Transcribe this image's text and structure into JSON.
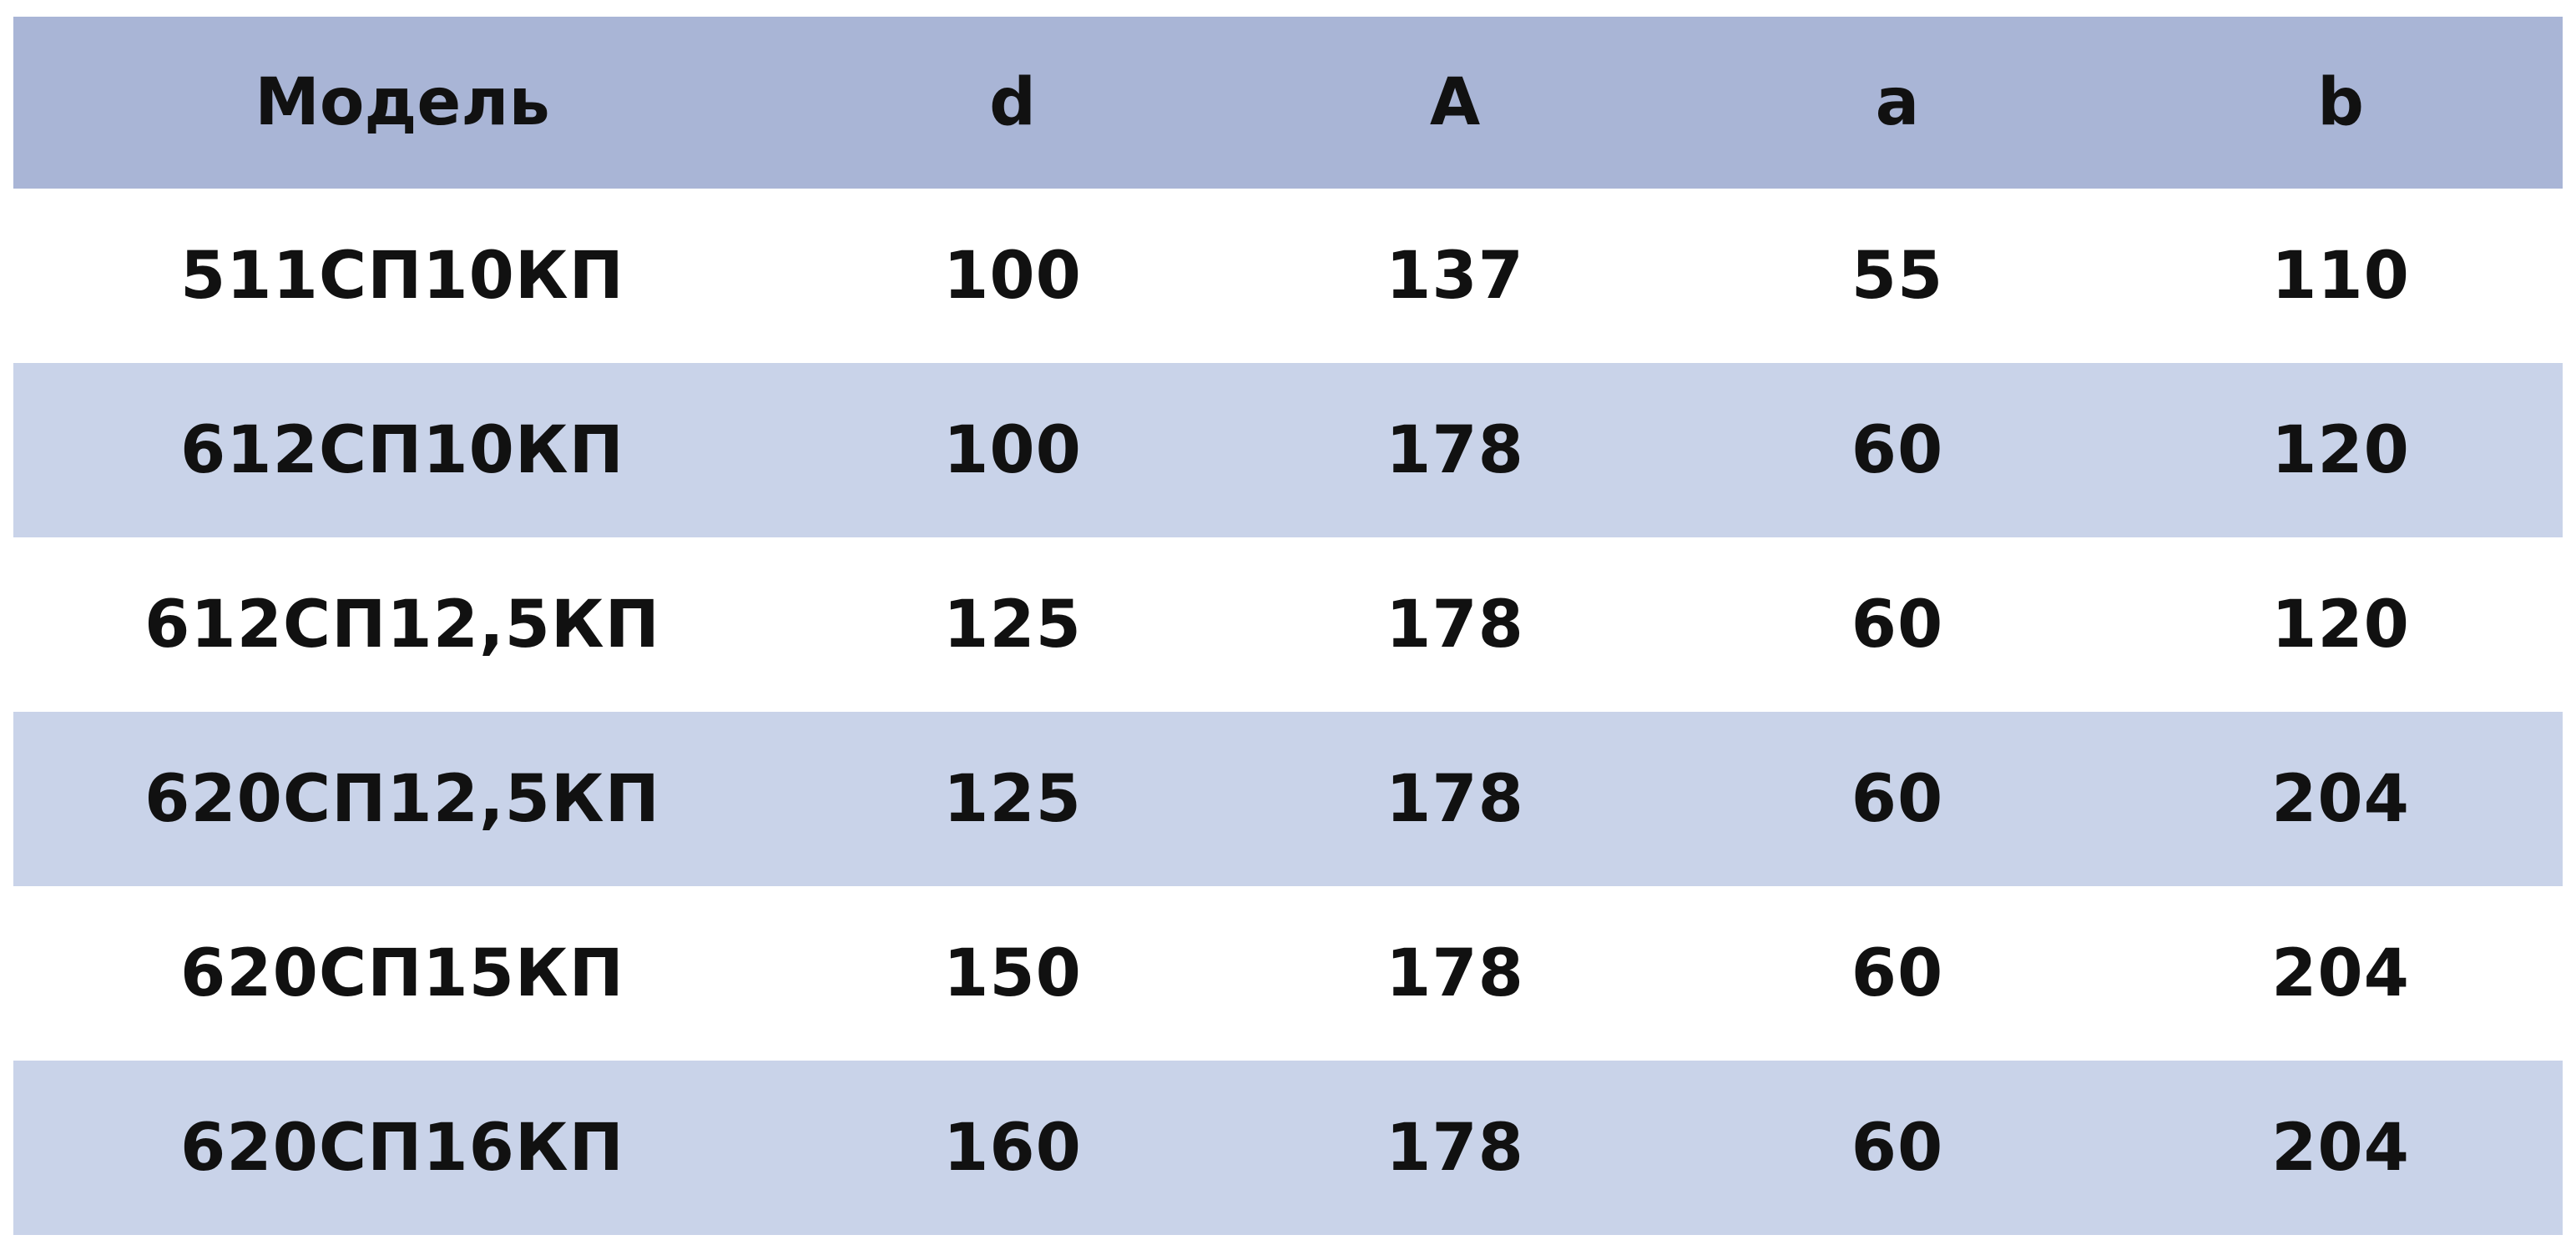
{
  "table": {
    "header": [
      "Модель",
      "d",
      "A",
      "a",
      "b"
    ],
    "rows": [
      [
        "511СП10КП",
        100,
        137,
        55,
        110
      ],
      [
        "612СП10КП",
        100,
        178,
        60,
        120
      ],
      [
        "612СП12,5КП",
        125,
        178,
        60,
        120
      ],
      [
        "620СП12,5КП",
        125,
        178,
        60,
        204
      ],
      [
        "620СП15КП",
        150,
        178,
        60,
        204
      ],
      [
        "620СП16КП",
        160,
        178,
        60,
        204
      ]
    ]
  }
}
